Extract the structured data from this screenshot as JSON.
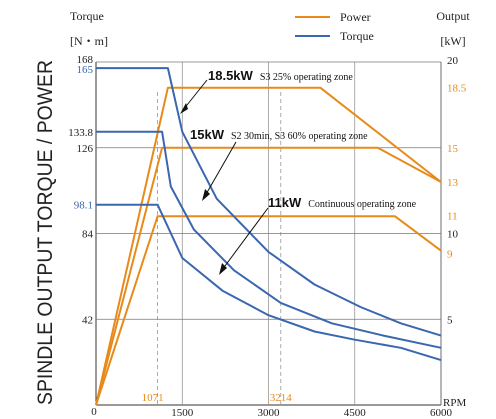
{
  "header": {
    "left_axis_title": "Torque",
    "left_axis_unit": "[N・m]",
    "right_axis_title": "Output",
    "right_axis_unit": "[kW]",
    "side_title": "SPINDLE OUTPUT TORQUE / POWER"
  },
  "chart_data": {
    "type": "line",
    "xlabel": "RPM",
    "x_ticks": [
      "1500",
      "3000",
      "4500",
      "6000"
    ],
    "x_tick_values": [
      1500,
      3000,
      4500,
      6000
    ],
    "x_zero_label": "0",
    "x_marker_labels": [
      "1071",
      "3214"
    ],
    "x_marker_values": [
      1071,
      3214
    ],
    "xlim": [
      0,
      6000
    ],
    "torque_axis": {
      "ylim": [
        0,
        168
      ],
      "ticks": [
        {
          "value": 168,
          "label": "168"
        },
        {
          "value": 165,
          "label": "165"
        },
        {
          "value": 133.8,
          "label": "133.8"
        },
        {
          "value": 126,
          "label": "126"
        },
        {
          "value": 98.1,
          "label": "98.1"
        },
        {
          "value": 84,
          "label": "84"
        },
        {
          "value": 42,
          "label": "42"
        }
      ]
    },
    "power_axis": {
      "ylim": [
        0,
        20
      ],
      "ticks": [
        {
          "value": 20,
          "label": "20"
        },
        {
          "value": 18.5,
          "label": "18.5"
        },
        {
          "value": 15,
          "label": "15"
        },
        {
          "value": 13,
          "label": "13"
        },
        {
          "value": 11,
          "label": "11"
        },
        {
          "value": 10,
          "label": "10"
        },
        {
          "value": 9,
          "label": "9"
        },
        {
          "value": 5,
          "label": "5"
        }
      ]
    },
    "legend": [
      {
        "label": "Power",
        "color": "#E88A1A"
      },
      {
        "label": "Torque",
        "color": "#3A67B0"
      }
    ],
    "power_series": [
      {
        "zone": "s3_25",
        "x": [
          0,
          1250,
          3900,
          6000
        ],
        "y": [
          0,
          18.5,
          18.5,
          13
        ]
      },
      {
        "zone": "s2_s3_60",
        "x": [
          0,
          1150,
          4900,
          6000
        ],
        "y": [
          0,
          15,
          15,
          13
        ]
      },
      {
        "zone": "continuous",
        "x": [
          0,
          1071,
          5200,
          6000
        ],
        "y": [
          0,
          11,
          11,
          9
        ]
      }
    ],
    "torque_series": [
      {
        "zone": "s3_25",
        "x": [
          0,
          1250,
          1500,
          2100,
          3000,
          3800,
          4600,
          5300,
          6000
        ],
        "y": [
          165,
          165,
          133.8,
          101,
          75,
          59,
          48,
          40,
          34
        ]
      },
      {
        "zone": "s2_s3_60",
        "x": [
          0,
          1150,
          1300,
          1700,
          2400,
          3214,
          4100,
          5000,
          6000
        ],
        "y": [
          133.8,
          133.8,
          107,
          86,
          66,
          50,
          40,
          34,
          28
        ]
      },
      {
        "zone": "continuous",
        "x": [
          0,
          1071,
          1500,
          2200,
          3000,
          3800,
          4500,
          5300,
          6000
        ],
        "y": [
          98.1,
          98.1,
          72,
          56,
          44,
          36,
          32,
          28,
          22
        ]
      }
    ],
    "annotations": [
      {
        "bold": "18.5kW",
        "text": "S3 25% operating zone"
      },
      {
        "bold": "15kW",
        "text": "S2 30min, S3 60% operating zone"
      },
      {
        "bold": "11kW",
        "text": "Continuous operating zone"
      }
    ],
    "colors": {
      "power": "#E88A1A",
      "torque": "#3A67B0"
    }
  }
}
